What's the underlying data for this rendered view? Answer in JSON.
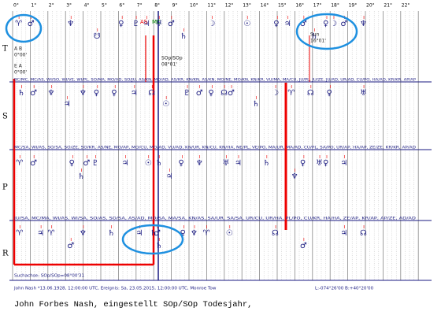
{
  "degrees": [
    "0°",
    "1°",
    "2°",
    "3°",
    "4°",
    "5°",
    "6°",
    "7°",
    "8°",
    "9°",
    "10°",
    "11°",
    "12°",
    "13°",
    "14°",
    "15°",
    "16°",
    "17°",
    "18°",
    "19°",
    "20°",
    "21°",
    "22°"
  ],
  "rows": [
    {
      "letter": "T",
      "glyphs": [
        "♈",
        "♂",
        "♆",
        "☋",
        "♀",
        "♇",
        "♃",
        "♅",
        "♂",
        "♄",
        "☽",
        "☉",
        "♀",
        "♃",
        "♂",
        "♄",
        "♀",
        "☽",
        "♂",
        "♆"
      ]
    },
    {
      "letter": "S",
      "abbrev": "BC/MC, MC/AS, WI/SO, WI/VE, WI/PL, SO/MA, MO/AD, SO/JU, AS/KN, MO/AD, AS/KR, KN/KN, AS/KN, MO/NE, MO/KN, KN/KR, VU/MA, MA/CU, JU/PL, JU/ZE, JU/AD, UR/AD, CU/PO, HA/AD, KR/KR, AP/AP",
      "glyphs": [
        "♄",
        "♂",
        "♆",
        "♃",
        "♆",
        "♀",
        "♀",
        "♃",
        "☊",
        "☉",
        "♇",
        "♂",
        "♀",
        "☊",
        "♂",
        "♄",
        "☽",
        "♈",
        "☊",
        "♀",
        "♅"
      ]
    },
    {
      "letter": "P",
      "abbrev": "MC/SA, WI/AS, SO/SA, SO/ZE, SO/KR, AS/NE, MO/AP, MO/CU, MO/AD, VU/AD, KN/UR, KN/CU, KN/HA, NE/PL, VE/PO, MA/UR, MA/AD, CU/PL, SA/PO, UR/AP, HA/AP, ZE/ZE, KR/KR, AP/AD",
      "glyphs": [
        "♈",
        "♂",
        "♀",
        "♄",
        "♂",
        "♇",
        "♃",
        "☉",
        "♄",
        "♃",
        "♀",
        "♆",
        "♅",
        "♃",
        "♄",
        "♆",
        "♀",
        "♅",
        "♀",
        "♃"
      ]
    },
    {
      "letter": "R",
      "abbrev": "JU/SA, MC/MA, WI/AS, WI/SA, SO/AS, SO/SA, AS/AD, MO/SA, MA/SA, KN/AS, SA/UR, SA/SA, UR/CU, UR/HA, PL/PO, CU/KR, HA/HA, ZE/AP, KR/AP, AP/ZE, AD/AD",
      "glyphs": [
        "♈",
        "♃",
        "♈",
        "♂",
        "♆",
        "♄",
        "♃",
        "♄",
        "♂",
        "♄",
        "♀",
        "♆",
        "♈",
        "☉",
        "☊",
        "♂",
        "♃",
        "☊"
      ]
    }
  ],
  "notes": {
    "t_ab": "A B",
    "t_ab_deg": "0°00'",
    "t_ea": "E A",
    "t_ea_deg": "0°00'",
    "as": "AS",
    "mc": "MC",
    "sop": "SOp/SOp",
    "sop_deg": "08°01'",
    "sun": "Sun",
    "sun_deg": "16°01'"
  },
  "footer": {
    "axis": "Suchachse: SOp/SOp=08°00'31",
    "info": "John Nash  *13.06.1928, 12:00:00 UTC, Ereignis: Sa, 23.05.2015, 12:00:00 UTC, Monroe Tow",
    "coords": "L:-074°26'00  B:+40°20'00"
  },
  "caption": "John Forbes Nash, eingestellt SOp/SOp Todesjahr,"
}
